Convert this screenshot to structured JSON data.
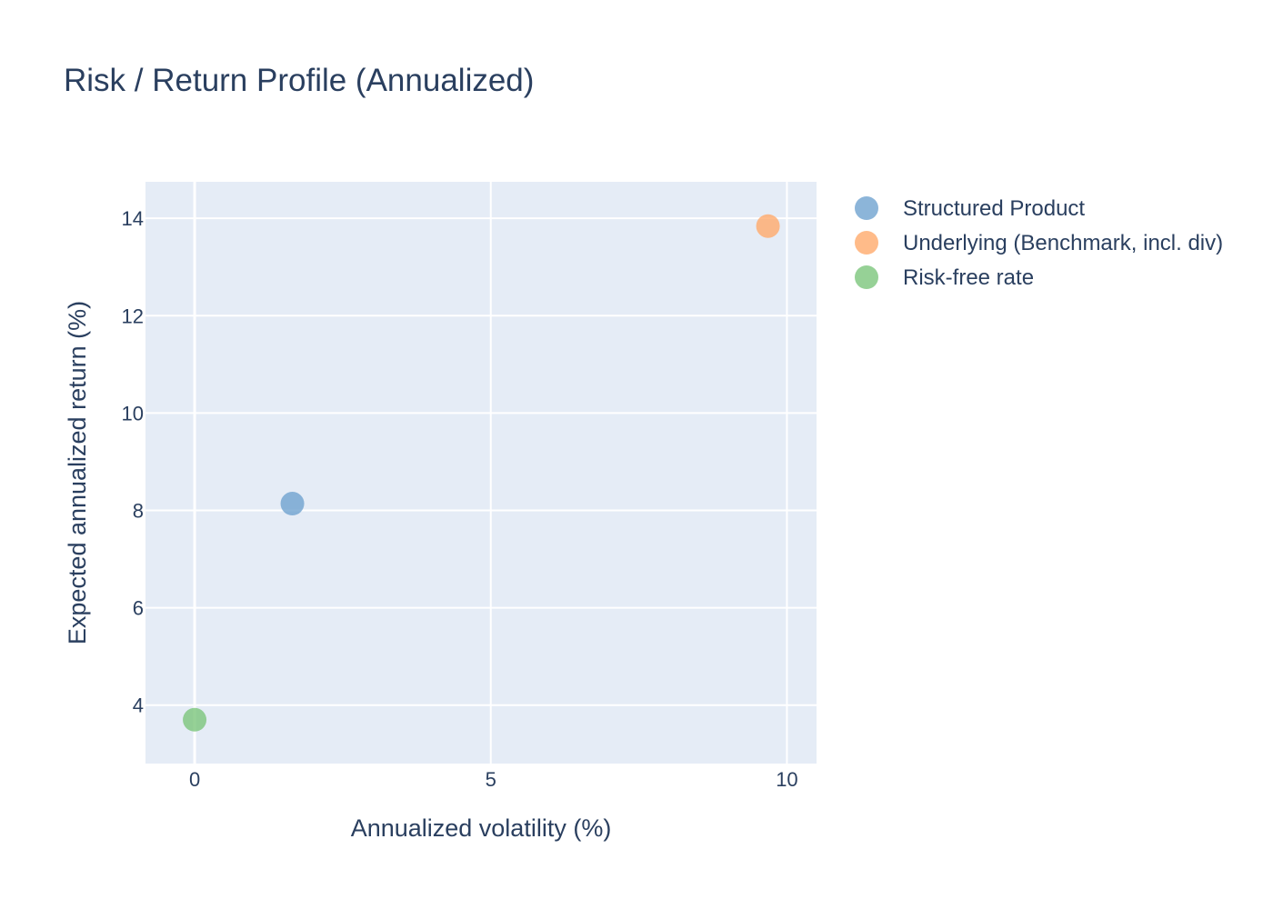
{
  "chart_data": {
    "type": "scatter",
    "title": "Risk / Return Profile (Annualized)",
    "xlabel": "Annualized volatility (%)",
    "ylabel": "Expected annualized return (%)",
    "xlim": [
      -0.83,
      10.5
    ],
    "ylim": [
      2.8,
      14.75
    ],
    "x_ticks": [
      0,
      5,
      10
    ],
    "y_ticks": [
      4,
      6,
      8,
      10,
      12,
      14
    ],
    "grid": true,
    "legend_position": "right",
    "series": [
      {
        "name": "Structured Product",
        "color": "#6fa3cf",
        "x": [
          1.65
        ],
        "y": [
          8.14
        ]
      },
      {
        "name": "Underlying (Benchmark, incl. div)",
        "color": "#ffaa6b",
        "x": [
          9.68
        ],
        "y": [
          13.84
        ]
      },
      {
        "name": "Risk-free rate",
        "color": "#7cc57c",
        "x": [
          0.0
        ],
        "y": [
          3.7
        ]
      }
    ]
  }
}
